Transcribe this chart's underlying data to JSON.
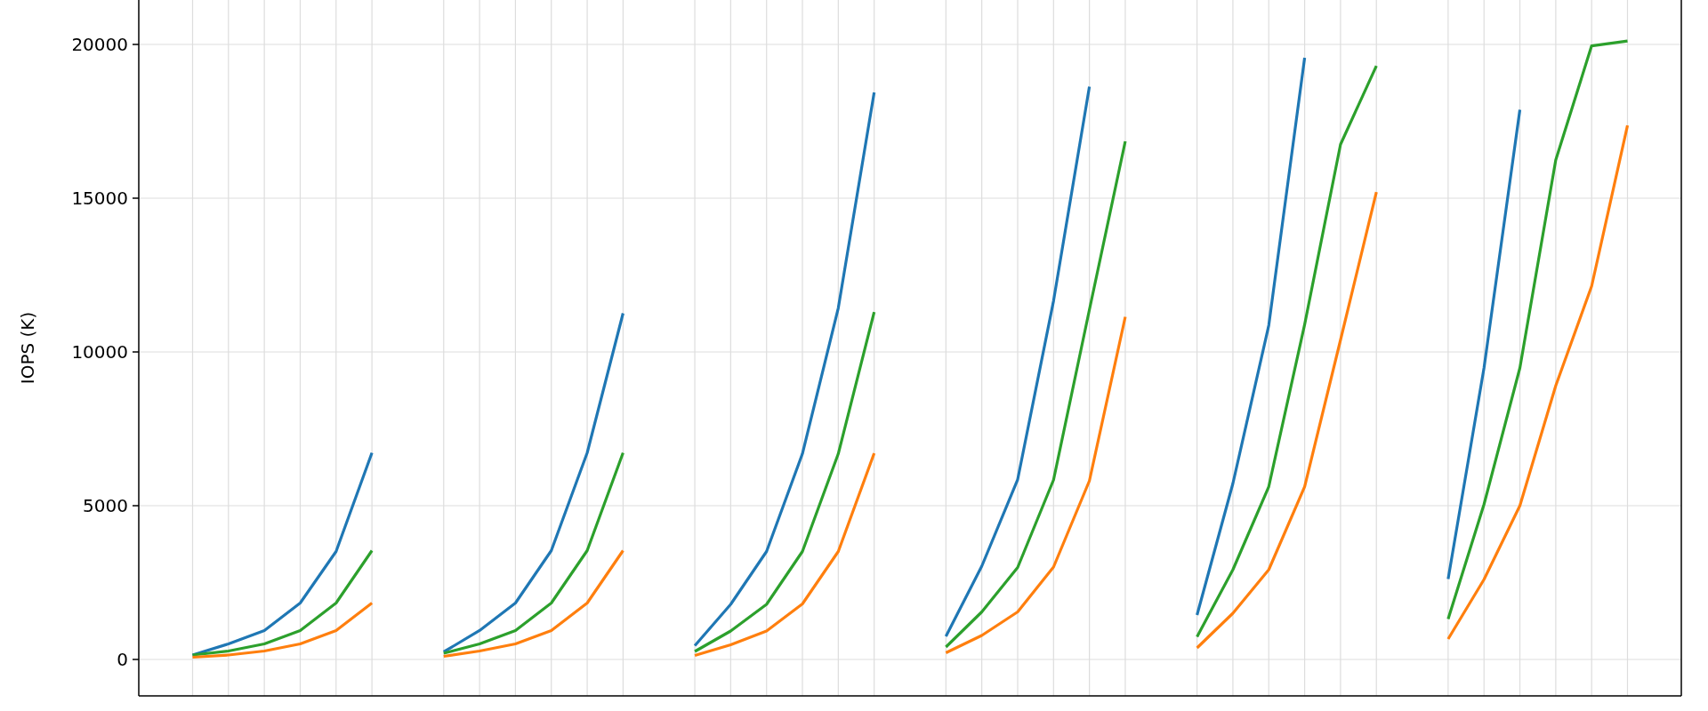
{
  "chart_data": {
    "type": "line",
    "ylabel": "IOPS (K)",
    "ylim": [
      -1185,
      21445
    ],
    "yticks": [
      0,
      5000,
      10000,
      15000,
      20000
    ],
    "categories": [
      null,
      null,
      null,
      null,
      null,
      null,
      null,
      null,
      null,
      null,
      null,
      null,
      null,
      null,
      null,
      null,
      null,
      null,
      null,
      null,
      null,
      null,
      null,
      null,
      null,
      null,
      null,
      null,
      null,
      null,
      null,
      null,
      null,
      null,
      null,
      null,
      null,
      null,
      null,
      null,
      null,
      null,
      null
    ],
    "grid": true,
    "tick_labels": "y",
    "line_style": "solid",
    "marker": "none",
    "series": [
      {
        "color": "#1f77b4",
        "values": [
          null,
          145,
          506,
          940,
          1835,
          3511,
          6719,
          null,
          null,
          null,
          null,
          null,
          null,
          null,
          null,
          null,
          null,
          null,
          null,
          null,
          null,
          null,
          null,
          null,
          null,
          null,
          null,
          null,
          null,
          null,
          null,
          null,
          null,
          null,
          null,
          null,
          null,
          null,
          null,
          null,
          null,
          null,
          null
        ]
      },
      {
        "color": "#2ca02c",
        "values": [
          null,
          145,
          275,
          506,
          940,
          1835,
          3540,
          null,
          null,
          null,
          null,
          null,
          null,
          null,
          null,
          null,
          null,
          null,
          null,
          null,
          null,
          null,
          null,
          null,
          null,
          null,
          null,
          null,
          null,
          null,
          null,
          null,
          null,
          null,
          null,
          null,
          null,
          null,
          null,
          null,
          null,
          null,
          null
        ]
      },
      {
        "color": "#ff7f0e",
        "values": [
          null,
          72,
          145,
          275,
          506,
          940,
          1835,
          null,
          null,
          null,
          null,
          null,
          null,
          null,
          null,
          null,
          null,
          null,
          null,
          null,
          null,
          null,
          null,
          null,
          null,
          null,
          null,
          null,
          null,
          null,
          null,
          null,
          null,
          null,
          null,
          null,
          null,
          null,
          null,
          null,
          null,
          null,
          null
        ]
      },
      {
        "color": "#1f77b4",
        "values": [
          null,
          null,
          null,
          null,
          null,
          null,
          null,
          null,
          246,
          940,
          1835,
          3540,
          6719,
          11257,
          null,
          null,
          null,
          null,
          null,
          null,
          null,
          null,
          null,
          null,
          null,
          null,
          null,
          null,
          null,
          null,
          null,
          null,
          null,
          null,
          null,
          null,
          null,
          null,
          null,
          null,
          null,
          null,
          null
        ]
      },
      {
        "color": "#2ca02c",
        "values": [
          null,
          null,
          null,
          null,
          null,
          null,
          null,
          null,
          202,
          506,
          940,
          1835,
          3540,
          6719,
          null,
          null,
          null,
          null,
          null,
          null,
          null,
          null,
          null,
          null,
          null,
          null,
          null,
          null,
          null,
          null,
          null,
          null,
          null,
          null,
          null,
          null,
          null,
          null,
          null,
          null,
          null,
          null,
          null
        ]
      },
      {
        "color": "#ff7f0e",
        "values": [
          null,
          null,
          null,
          null,
          null,
          null,
          null,
          null,
          101,
          275,
          506,
          940,
          1835,
          3540,
          null,
          null,
          null,
          null,
          null,
          null,
          null,
          null,
          null,
          null,
          null,
          null,
          null,
          null,
          null,
          null,
          null,
          null,
          null,
          null,
          null,
          null,
          null,
          null,
          null,
          null,
          null,
          null,
          null
        ]
      },
      {
        "color": "#1f77b4",
        "values": [
          null,
          null,
          null,
          null,
          null,
          null,
          null,
          null,
          null,
          null,
          null,
          null,
          null,
          null,
          null,
          448,
          1792,
          3511,
          6690,
          11430,
          18440,
          null,
          null,
          null,
          null,
          null,
          null,
          null,
          null,
          null,
          null,
          null,
          null,
          null,
          null,
          null,
          null,
          null,
          null,
          null,
          null,
          null,
          null
        ]
      },
      {
        "color": "#2ca02c",
        "values": [
          null,
          null,
          null,
          null,
          null,
          null,
          null,
          null,
          null,
          null,
          null,
          null,
          null,
          null,
          null,
          260,
          925,
          1792,
          3511,
          6690,
          11300,
          null,
          null,
          null,
          null,
          null,
          null,
          null,
          null,
          null,
          null,
          null,
          null,
          null,
          null,
          null,
          null,
          null,
          null,
          null,
          null,
          null,
          null
        ]
      },
      {
        "color": "#ff7f0e",
        "values": [
          null,
          null,
          null,
          null,
          null,
          null,
          null,
          null,
          null,
          null,
          null,
          null,
          null,
          null,
          null,
          130,
          477,
          925,
          1806,
          3511,
          6705,
          null,
          null,
          null,
          null,
          null,
          null,
          null,
          null,
          null,
          null,
          null,
          null,
          null,
          null,
          null,
          null,
          null,
          null,
          null,
          null,
          null,
          null
        ]
      },
      {
        "color": "#1f77b4",
        "values": [
          null,
          null,
          null,
          null,
          null,
          null,
          null,
          null,
          null,
          null,
          null,
          null,
          null,
          null,
          null,
          null,
          null,
          null,
          null,
          null,
          null,
          null,
          751,
          3035,
          5852,
          11660,
          18627,
          null,
          null,
          null,
          null,
          null,
          null,
          null,
          null,
          null,
          null,
          null,
          null,
          null,
          null,
          null,
          null
        ]
      },
      {
        "color": "#2ca02c",
        "values": [
          null,
          null,
          null,
          null,
          null,
          null,
          null,
          null,
          null,
          null,
          null,
          null,
          null,
          null,
          null,
          null,
          null,
          null,
          null,
          null,
          null,
          null,
          405,
          1546,
          2991,
          5838,
          11372,
          16849,
          null,
          null,
          null,
          null,
          null,
          null,
          null,
          null,
          null,
          null,
          null,
          null,
          null,
          null,
          null
        ]
      },
      {
        "color": "#ff7f0e",
        "values": [
          null,
          null,
          null,
          null,
          null,
          null,
          null,
          null,
          null,
          null,
          null,
          null,
          null,
          null,
          null,
          null,
          null,
          null,
          null,
          null,
          null,
          null,
          217,
          780,
          1546,
          3006,
          5809,
          11141,
          null,
          null,
          null,
          null,
          null,
          null,
          null,
          null,
          null,
          null,
          null,
          null,
          null,
          null,
          null
        ]
      },
      {
        "color": "#1f77b4",
        "values": [
          null,
          null,
          null,
          null,
          null,
          null,
          null,
          null,
          null,
          null,
          null,
          null,
          null,
          null,
          null,
          null,
          null,
          null,
          null,
          null,
          null,
          null,
          null,
          null,
          null,
          null,
          null,
          null,
          null,
          1445,
          5722,
          10866,
          19565,
          null,
          null,
          null,
          null,
          null,
          null,
          null,
          null,
          null,
          null
        ]
      },
      {
        "color": "#2ca02c",
        "values": [
          null,
          null,
          null,
          null,
          null,
          null,
          null,
          null,
          null,
          null,
          null,
          null,
          null,
          null,
          null,
          null,
          null,
          null,
          null,
          null,
          null,
          null,
          null,
          null,
          null,
          null,
          null,
          null,
          null,
          737,
          2919,
          5621,
          10895,
          16748,
          19305,
          null,
          null,
          null,
          null,
          null,
          null,
          null,
          null
        ]
      },
      {
        "color": "#ff7f0e",
        "values": [
          null,
          null,
          null,
          null,
          null,
          null,
          null,
          null,
          null,
          null,
          null,
          null,
          null,
          null,
          null,
          null,
          null,
          null,
          null,
          null,
          null,
          null,
          null,
          null,
          null,
          null,
          null,
          null,
          null,
          376,
          1503,
          2919,
          5621,
          10390,
          15201,
          null,
          null,
          null,
          null,
          null,
          null,
          null,
          null
        ]
      },
      {
        "color": "#1f77b4",
        "values": [
          null,
          null,
          null,
          null,
          null,
          null,
          null,
          null,
          null,
          null,
          null,
          null,
          null,
          null,
          null,
          null,
          null,
          null,
          null,
          null,
          null,
          null,
          null,
          null,
          null,
          null,
          null,
          null,
          null,
          null,
          null,
          null,
          null,
          null,
          null,
          null,
          2615,
          9479,
          17875,
          null,
          null,
          null,
          null
        ]
      },
      {
        "color": "#2ca02c",
        "values": [
          null,
          null,
          null,
          null,
          null,
          null,
          null,
          null,
          null,
          null,
          null,
          null,
          null,
          null,
          null,
          null,
          null,
          null,
          null,
          null,
          null,
          null,
          null,
          null,
          null,
          null,
          null,
          null,
          null,
          null,
          null,
          null,
          null,
          null,
          null,
          null,
          1315,
          5043,
          9479,
          16242,
          19955,
          20114,
          null
        ]
      },
      {
        "color": "#ff7f0e",
        "values": [
          null,
          null,
          null,
          null,
          null,
          null,
          null,
          null,
          null,
          null,
          null,
          null,
          null,
          null,
          null,
          null,
          null,
          null,
          null,
          null,
          null,
          null,
          null,
          null,
          null,
          null,
          null,
          null,
          null,
          null,
          null,
          null,
          null,
          null,
          null,
          null,
          665,
          2601,
          5000,
          8901,
          12138,
          17369,
          null
        ]
      }
    ]
  }
}
